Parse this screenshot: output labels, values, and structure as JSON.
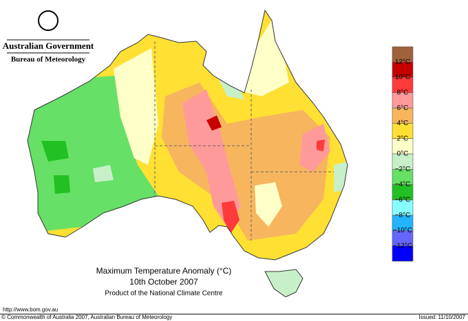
{
  "header": {
    "government": "Australian Government",
    "bureau": "Bureau of Meteorology"
  },
  "map": {
    "title": "Maximum Temperature Anomaly (°C)",
    "date": "10th October 2007",
    "credit": "Product of the National Climate Centre"
  },
  "legend": {
    "colors": [
      "#a0623a",
      "#c80000",
      "#ff3a3a",
      "#ff9a9a",
      "#f7b55e",
      "#ffe033",
      "#ffffc8",
      "#c8f0c8",
      "#66e066",
      "#22c022",
      "#88ffff",
      "#22b4ff",
      "#6666ff",
      "#0000ff"
    ],
    "labels": [
      "12°C",
      "10°C",
      "8°C",
      "6°C",
      "4°C",
      "2°C",
      "0°C",
      "−2°C",
      "−4°C",
      "−6°C",
      "−8°C",
      "−10°C",
      "−12°C"
    ]
  },
  "footer": {
    "url": "http://www.bom.gov.au",
    "copyright": "© Commonwealth of Australia 2007, Australian Bureau of Meteorology",
    "issued": "Issued: 11/10/2007"
  }
}
